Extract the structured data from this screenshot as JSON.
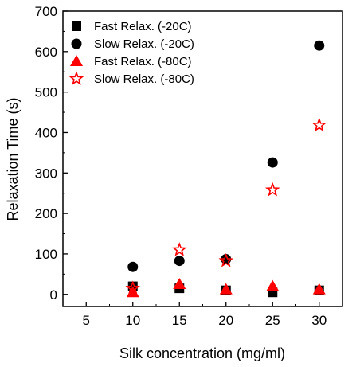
{
  "chart_data": {
    "type": "scatter",
    "title": "",
    "xlabel": "Silk concentration (mg/ml)",
    "ylabel": "Relaxation Time (s)",
    "xlim": [
      2.5,
      32.5
    ],
    "ylim": [
      -30,
      700
    ],
    "xticks": [
      5,
      10,
      15,
      20,
      25,
      30
    ],
    "yticks": [
      0,
      100,
      200,
      300,
      400,
      500,
      600,
      700
    ],
    "grid": false,
    "legend_position": "top-left",
    "series": [
      {
        "name": "Fast Relax. (-20C)",
        "marker": "square",
        "color": "#000000",
        "filled": true,
        "x": [
          10,
          15,
          20,
          25,
          30
        ],
        "y": [
          20,
          15,
          10,
          5,
          10
        ]
      },
      {
        "name": "Slow Relax. (-20C)",
        "marker": "circle",
        "color": "#000000",
        "filled": true,
        "x": [
          10,
          15,
          20,
          25,
          30
        ],
        "y": [
          68,
          83,
          87,
          326,
          615
        ]
      },
      {
        "name": "Fast Relax. (-80C)",
        "marker": "triangle",
        "color": "#ff0000",
        "filled": true,
        "x": [
          10,
          15,
          20,
          25,
          30
        ],
        "y": [
          5,
          25,
          12,
          20,
          12
        ]
      },
      {
        "name": "Slow Relax. (-80C)",
        "marker": "star",
        "color": "#ff0000",
        "filled": false,
        "x": [
          10,
          15,
          20,
          25,
          30
        ],
        "y": [
          15,
          110,
          83,
          258,
          418
        ]
      }
    ]
  }
}
